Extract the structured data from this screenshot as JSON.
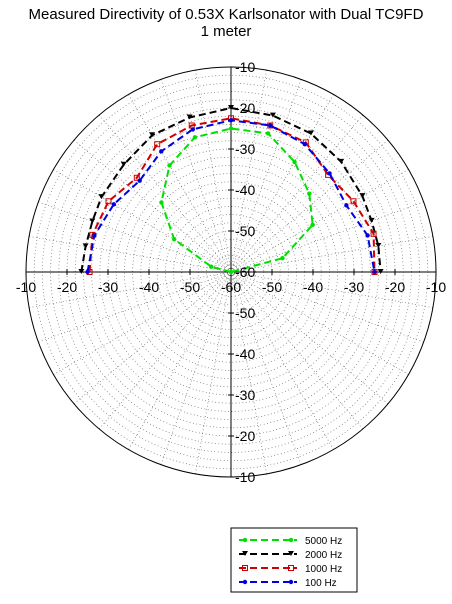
{
  "chart_data": {
    "type": "polar-line",
    "title": "Measured Directivity of 0.53X Karlsonator with Dual TC9FD",
    "subtitle": "1 meter",
    "r_range": [
      -60,
      -10
    ],
    "r_step": 10,
    "angle_range_deg": [
      -90,
      90
    ],
    "grid": true,
    "grid_style": "dotted",
    "tick_labels": {
      "vertical_up": [
        "-10",
        "-20",
        "-30",
        "-40",
        "-50",
        "-60"
      ],
      "vertical_down": [
        "-50",
        "-40",
        "-30",
        "-20",
        "-10"
      ],
      "horizontal_left": [
        "-10",
        "-20",
        "-30",
        "-40",
        "-50"
      ],
      "horizontal_right": [
        "-50",
        "-40",
        "-30",
        "-20",
        "-10"
      ],
      "center": "-60"
    },
    "legend_position": "bottom-right",
    "series": [
      {
        "name": "5000 Hz",
        "color": "#00e000",
        "dash": "dashed",
        "marker": "dot",
        "angles": [
          -90,
          -75,
          -60,
          -45,
          -30,
          -15,
          0,
          15,
          30,
          45,
          60,
          75,
          90
        ],
        "values": [
          -60,
          -55,
          -44,
          -36,
          -30,
          -26,
          -25,
          -25,
          -29,
          -33,
          -37,
          -47,
          -60
        ]
      },
      {
        "name": "2000 Hz",
        "color": "#000000",
        "dash": "dashed",
        "marker": "arrow",
        "angles": [
          -90,
          -80,
          -70,
          -60,
          -45,
          -30,
          -15,
          0,
          15,
          30,
          45,
          60,
          70,
          80,
          90
        ],
        "values": [
          -23.5,
          -24,
          -24,
          -23.5,
          -23,
          -21.5,
          -21,
          -20,
          -20.5,
          -21,
          -22,
          -23,
          -23.5,
          -23.5,
          -23.5
        ]
      },
      {
        "name": "1000 Hz",
        "color": "#d00000",
        "dash": "dashed",
        "marker": "square",
        "angles": [
          -90,
          -75,
          -60,
          -45,
          -30,
          -15,
          0,
          15,
          30,
          45,
          60,
          75,
          90
        ],
        "values": [
          -25.5,
          -25,
          -25.5,
          -27.5,
          -24,
          -23,
          -22.5,
          -23,
          -23.5,
          -26.5,
          -25.5,
          -24,
          -25
        ]
      },
      {
        "name": "100 Hz",
        "color": "#0000e0",
        "dash": "dashed",
        "marker": "dot",
        "angles": [
          -90,
          -75,
          -60,
          -45,
          -30,
          -15,
          0,
          15,
          30,
          45,
          60,
          75,
          90
        ],
        "values": [
          -25,
          -25.5,
          -27,
          -28.5,
          -26,
          -24,
          -23,
          -23,
          -24,
          -26,
          -27.5,
          -25.5,
          -25
        ]
      }
    ]
  }
}
